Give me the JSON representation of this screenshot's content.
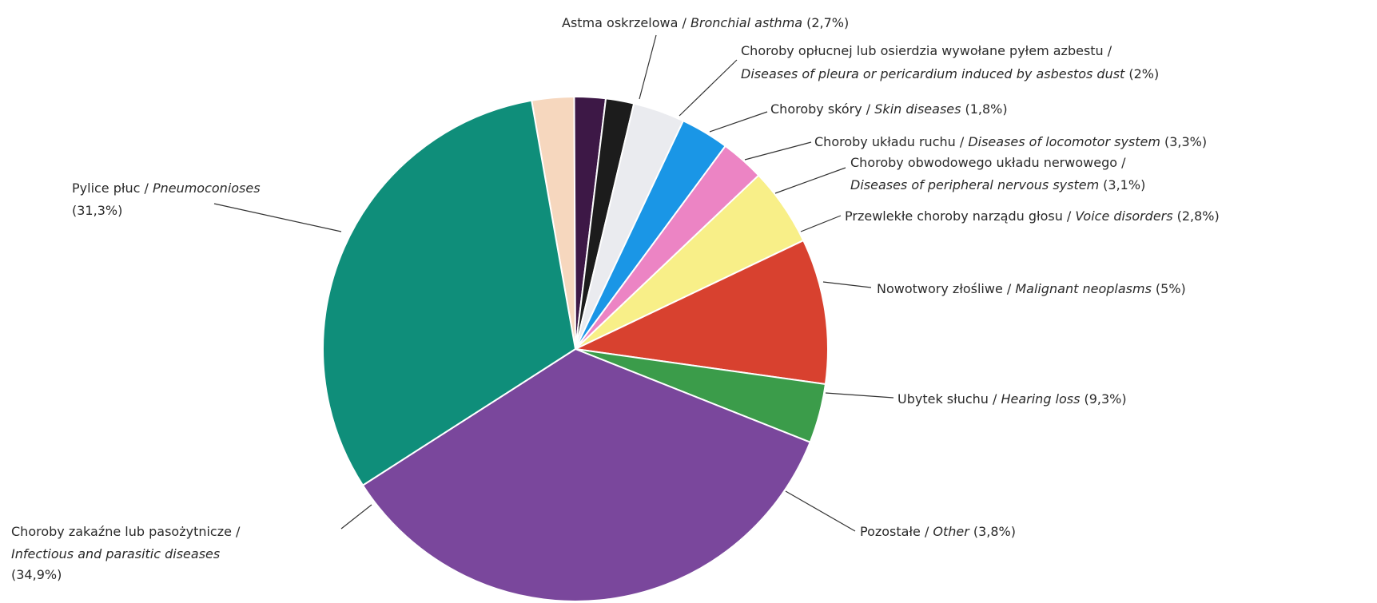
{
  "chart_data": {
    "type": "pie",
    "title": "",
    "start_angle_deg": -10,
    "slices": [
      {
        "pl": "Astma oskrzelowa / ",
        "en": "Bronchial asthma",
        "pct": "(2,7%)",
        "value": 2.7,
        "color": "#f6d7be"
      },
      {
        "pl": "Choroby opłucnej lub osierdzia wywołane pyłem azbestu /",
        "en": "Diseases of pleura or pericardium induced by asbestos dust",
        "pct": "(2%)",
        "value": 2.0,
        "color": "#3d1846"
      },
      {
        "pl": "Choroby skóry / ",
        "en": "Skin diseases",
        "pct": "(1,8%)",
        "value": 1.8,
        "color": "#1c1c1c"
      },
      {
        "pl": "Choroby układu ruchu / ",
        "en": "Diseases of locomotor system",
        "pct": "(3,3%)",
        "value": 3.3,
        "color": "#eaebef"
      },
      {
        "pl": "Choroby obwodowego układu nerwowego /",
        "en": "Diseases of peripheral nervous system",
        "pct": "(3,1%)",
        "value": 3.1,
        "color": "#1a96e6"
      },
      {
        "pl": "Przewlekłe choroby narządu głosu / ",
        "en": "Voice disorders",
        "pct": "(2,8%)",
        "value": 2.8,
        "color": "#ec84c4"
      },
      {
        "pl": "Nowotwory złośliwe / ",
        "en": "Malignant neoplasms",
        "pct": "(5%)",
        "value": 5.0,
        "color": "#f8ef88"
      },
      {
        "pl": "Ubytek słuchu / ",
        "en": "Hearing loss",
        "pct": "(9,3%)",
        "value": 9.3,
        "color": "#d8412f"
      },
      {
        "pl": "Pozostałe / ",
        "en": "Other",
        "pct": "(3,8%)",
        "value": 3.8,
        "color": "#3b9c4a"
      },
      {
        "pl": "Choroby zakaźne lub pasożytnicze /",
        "en": "Infectious and parasitic diseases",
        "pct": "(34,9%)",
        "value": 34.9,
        "color": "#7a479c"
      },
      {
        "pl": "Pylice płuc / ",
        "en": "Pneumoconioses",
        "pct": "(31,3%)",
        "value": 31.3,
        "color": "#0f8e7a"
      }
    ]
  }
}
